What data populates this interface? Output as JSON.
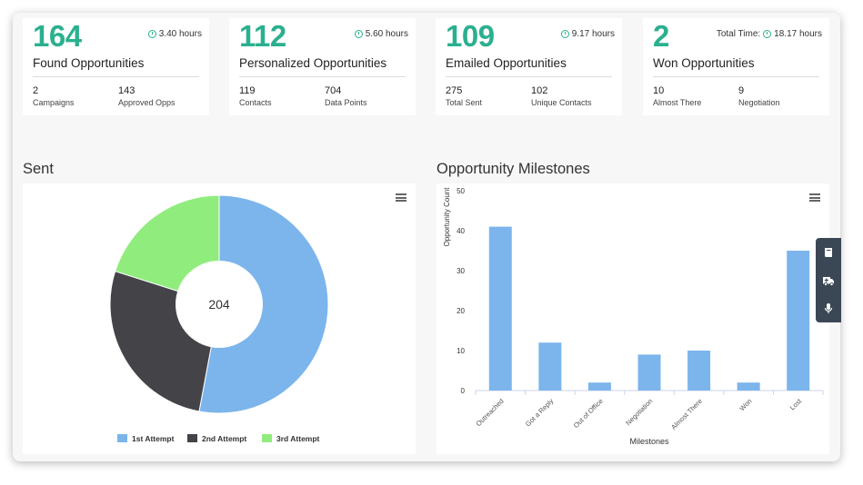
{
  "cards": [
    {
      "value": "164",
      "time": "3.40 hours",
      "time_prefix": "",
      "title": "Found Opportunities",
      "stats": [
        {
          "value": "2",
          "label": "Campaigns"
        },
        {
          "value": "143",
          "label": "Approved Opps"
        }
      ]
    },
    {
      "value": "112",
      "time": "5.60 hours",
      "time_prefix": "",
      "title": "Personalized Opportunities",
      "stats": [
        {
          "value": "119",
          "label": "Contacts"
        },
        {
          "value": "704",
          "label": "Data Points"
        }
      ]
    },
    {
      "value": "109",
      "time": "9.17 hours",
      "time_prefix": "",
      "title": "Emailed Opportunities",
      "stats": [
        {
          "value": "275",
          "label": "Total Sent"
        },
        {
          "value": "102",
          "label": "Unique Contacts"
        }
      ]
    },
    {
      "value": "2",
      "time": "18.17 hours",
      "time_prefix": "Total Time:",
      "title": "Won Opportunities",
      "stats": [
        {
          "value": "10",
          "label": "Almost There"
        },
        {
          "value": "9",
          "label": "Negotiation"
        }
      ]
    }
  ],
  "sections": {
    "sent": "Sent",
    "milestones": "Opportunity Milestones"
  },
  "chart_data": [
    {
      "type": "pie",
      "title": "",
      "center_label": "204",
      "categories": [
        "1st Attempt",
        "2nd Attempt",
        "3rd Attempt"
      ],
      "values": [
        108,
        55,
        41
      ],
      "colors": [
        "#7cb5ec",
        "#434348",
        "#90ed7d"
      ],
      "legend": "bottom-center"
    },
    {
      "type": "bar",
      "title": "",
      "xlabel": "Milestones",
      "ylabel": "Opportunity Count",
      "categories": [
        "Outreached",
        "Got a Reply",
        "Out of Office",
        "Negotiation",
        "Almost There",
        "Won",
        "Lost"
      ],
      "values": [
        41,
        12,
        2,
        9,
        10,
        2,
        35
      ],
      "ylim": [
        0,
        50
      ],
      "yticks": [
        0,
        10,
        20,
        30,
        40,
        50
      ],
      "color": "#7cb5ec",
      "grid": false
    }
  ],
  "icons": {
    "menu": "hamburger-menu-icon",
    "tools": [
      "book-icon",
      "ambulance-icon",
      "microphone-icon"
    ]
  }
}
